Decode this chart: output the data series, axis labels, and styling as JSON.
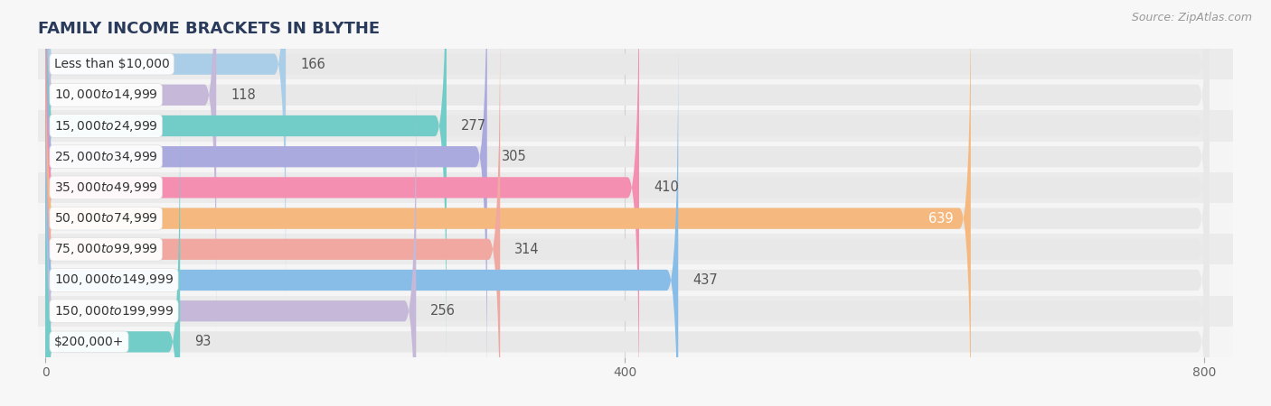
{
  "title": "FAMILY INCOME BRACKETS IN BLYTHE",
  "source": "Source: ZipAtlas.com",
  "categories": [
    "Less than $10,000",
    "$10,000 to $14,999",
    "$15,000 to $24,999",
    "$25,000 to $34,999",
    "$35,000 to $49,999",
    "$50,000 to $74,999",
    "$75,000 to $99,999",
    "$100,000 to $149,999",
    "$150,000 to $199,999",
    "$200,000+"
  ],
  "values": [
    166,
    118,
    277,
    305,
    410,
    639,
    314,
    437,
    256,
    93
  ],
  "bar_colors": [
    "#aacde8",
    "#c5b8d8",
    "#72ccc8",
    "#aaaade",
    "#f48fb1",
    "#f5b97f",
    "#f0a8a0",
    "#88bde8",
    "#c5b8d8",
    "#72ccc8"
  ],
  "row_bg_odd": "#f0f0f0",
  "row_bg_even": "#fafafa",
  "xlim_min": -5,
  "xlim_max": 820,
  "xticks": [
    0,
    400,
    800
  ],
  "bar_height": 0.68,
  "label_fontsize": 10.5,
  "title_fontsize": 13,
  "value_color_inside": "#ffffff",
  "value_color_outside": "#555555",
  "background_color": "#f7f7f7",
  "bar_row_bg": "#ececec",
  "label_bg_color": "#ffffff",
  "grid_color": "#cccccc",
  "title_color": "#2a3a5a"
}
